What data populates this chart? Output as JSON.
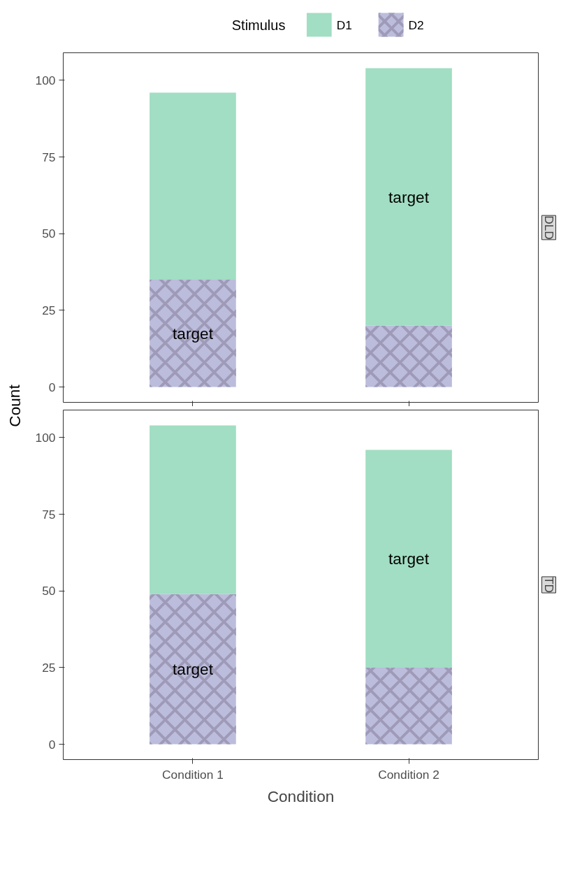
{
  "chart_data": [
    {
      "type": "bar",
      "title": "DLD",
      "ylabel": "Count",
      "legend_title": "Stimulus",
      "legend": "top",
      "stacked": true,
      "categories": [
        null,
        null
      ],
      "ylim": [
        -5,
        109
      ],
      "yticks": [
        0,
        25,
        50,
        75,
        100
      ],
      "grid": false,
      "tick_labels": "y",
      "series": [
        {
          "name": "D2",
          "color": "#bcbddc",
          "values": [
            35,
            20
          ],
          "value_labels": [
            "target",
            null
          ]
        },
        {
          "name": "D1",
          "color": "#a1dec3",
          "values": [
            61,
            84
          ],
          "value_labels": [
            null,
            "target"
          ]
        }
      ]
    },
    {
      "type": "bar",
      "title": "TD",
      "xlabel": "Condition",
      "stacked": true,
      "categories": [
        "Condition 1",
        "Condition 2"
      ],
      "ylim": [
        -5,
        109
      ],
      "yticks": [
        0,
        25,
        50,
        75,
        100
      ],
      "grid": false,
      "series": [
        {
          "color": "#bcbddc",
          "values": [
            49,
            25
          ],
          "value_labels": [
            "target",
            null
          ]
        },
        {
          "color": "#a1dec3",
          "values": [
            55,
            71
          ],
          "value_labels": [
            null,
            "target"
          ]
        }
      ]
    }
  ]
}
